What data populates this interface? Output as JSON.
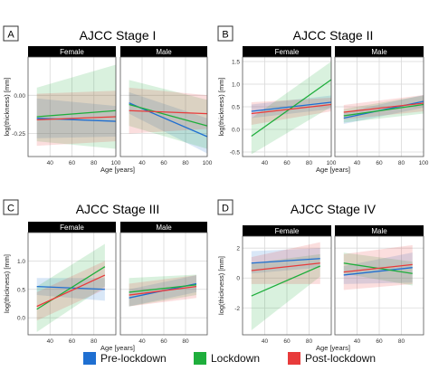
{
  "colors": {
    "pre_lockdown": "#1f6fd1",
    "lockdown": "#1fae3c",
    "post_lockdown": "#e83b3b",
    "strip_bg": "#000000",
    "strip_text": "#ffffff",
    "grid": "#d9d9d9",
    "panel_border": "#555555"
  },
  "legend": {
    "items": [
      {
        "key": "pre_lockdown",
        "label": "Pre-lockdown"
      },
      {
        "key": "lockdown",
        "label": "Lockdown"
      },
      {
        "key": "post_lockdown",
        "label": "Post-lockdown"
      }
    ]
  },
  "chart_data": [
    {
      "letter": "A",
      "title": "AJCC Stage I",
      "type": "line",
      "xlabel": "Age [years]",
      "ylabel": "log(thickness) [mm]",
      "xlim": [
        20,
        100
      ],
      "ylim": [
        -0.4,
        0.25
      ],
      "xticks": [
        40,
        60,
        80,
        100
      ],
      "yticks": [
        -0.25,
        0.0
      ],
      "ytick_labels": [
        "-0.25",
        "0.00"
      ],
      "grid": true,
      "facets": [
        {
          "label": "Female",
          "series": [
            {
              "key": "pre_lockdown",
              "x": [
                28,
                100
              ],
              "y": [
                -0.15,
                -0.17
              ],
              "band_lo": [
                -0.28,
                -0.27
              ],
              "band_hi": [
                -0.02,
                -0.07
              ]
            },
            {
              "key": "lockdown",
              "x": [
                28,
                100
              ],
              "y": [
                -0.14,
                -0.1
              ],
              "band_lo": [
                -0.3,
                -0.35
              ],
              "band_hi": [
                0.05,
                0.2
              ]
            },
            {
              "key": "post_lockdown",
              "x": [
                28,
                100
              ],
              "y": [
                -0.16,
                -0.14
              ],
              "band_lo": [
                -0.33,
                -0.3
              ],
              "band_hi": [
                0.01,
                0.03
              ]
            }
          ]
        },
        {
          "label": "Male",
          "series": [
            {
              "key": "pre_lockdown",
              "x": [
                28,
                100
              ],
              "y": [
                -0.05,
                -0.27
              ],
              "band_lo": [
                -0.12,
                -0.38
              ],
              "band_hi": [
                0.02,
                -0.15
              ]
            },
            {
              "key": "lockdown",
              "x": [
                28,
                100
              ],
              "y": [
                -0.06,
                -0.2
              ],
              "band_lo": [
                -0.2,
                -0.35
              ],
              "band_hi": [
                0.1,
                -0.03
              ]
            },
            {
              "key": "post_lockdown",
              "x": [
                28,
                100
              ],
              "y": [
                -0.1,
                -0.12
              ],
              "band_lo": [
                -0.25,
                -0.22
              ],
              "band_hi": [
                0.05,
                0.0
              ]
            }
          ]
        }
      ]
    },
    {
      "letter": "B",
      "title": "AJCC Stage II",
      "type": "line",
      "xlabel": "Age [years]",
      "ylabel": "log(thickness) [mm]",
      "xlim": [
        20,
        100
      ],
      "ylim": [
        -0.6,
        1.6
      ],
      "xticks": [
        40,
        60,
        80,
        100
      ],
      "yticks": [
        -0.5,
        0.0,
        0.5,
        1.0,
        1.5
      ],
      "ytick_labels": [
        "-0.5",
        "0.0",
        "0.5",
        "1.0",
        "1.5"
      ],
      "grid": true,
      "facets": [
        {
          "label": "Female",
          "series": [
            {
              "key": "pre_lockdown",
              "x": [
                28,
                100
              ],
              "y": [
                0.4,
                0.6
              ],
              "band_lo": [
                0.25,
                0.45
              ],
              "band_hi": [
                0.55,
                0.75
              ]
            },
            {
              "key": "lockdown",
              "x": [
                28,
                100
              ],
              "y": [
                -0.15,
                1.1
              ],
              "band_lo": [
                -0.55,
                0.5
              ],
              "band_hi": [
                0.25,
                1.5
              ]
            },
            {
              "key": "post_lockdown",
              "x": [
                28,
                100
              ],
              "y": [
                0.35,
                0.55
              ],
              "band_lo": [
                0.1,
                0.4
              ],
              "band_hi": [
                0.6,
                0.7
              ]
            }
          ]
        },
        {
          "label": "Male",
          "series": [
            {
              "key": "pre_lockdown",
              "x": [
                28,
                100
              ],
              "y": [
                0.25,
                0.62
              ],
              "band_lo": [
                0.12,
                0.48
              ],
              "band_hi": [
                0.38,
                0.76
              ]
            },
            {
              "key": "lockdown",
              "x": [
                28,
                100
              ],
              "y": [
                0.3,
                0.55
              ],
              "band_lo": [
                0.15,
                0.35
              ],
              "band_hi": [
                0.45,
                0.75
              ]
            },
            {
              "key": "post_lockdown",
              "x": [
                28,
                100
              ],
              "y": [
                0.38,
                0.58
              ],
              "band_lo": [
                0.22,
                0.4
              ],
              "band_hi": [
                0.54,
                0.76
              ]
            }
          ]
        }
      ]
    },
    {
      "letter": "C",
      "title": "AJCC Stage III",
      "type": "line",
      "xlabel": "Age [years]",
      "ylabel": "log(thickness) [mm]",
      "xlim": [
        20,
        100
      ],
      "ylim": [
        -0.3,
        1.5
      ],
      "xticks": [
        40,
        60,
        80
      ],
      "yticks": [
        0.0,
        0.5,
        1.0
      ],
      "ytick_labels": [
        "0.0",
        "0.5",
        "1.0"
      ],
      "grid": true,
      "facets": [
        {
          "label": "Female",
          "series": [
            {
              "key": "pre_lockdown",
              "x": [
                28,
                90
              ],
              "y": [
                0.55,
                0.5
              ],
              "band_lo": [
                0.4,
                0.3
              ],
              "band_hi": [
                0.7,
                0.7
              ]
            },
            {
              "key": "lockdown",
              "x": [
                28,
                90
              ],
              "y": [
                0.15,
                0.9
              ],
              "band_lo": [
                -0.25,
                0.55
              ],
              "band_hi": [
                0.55,
                1.3
              ]
            },
            {
              "key": "post_lockdown",
              "x": [
                28,
                90
              ],
              "y": [
                0.2,
                0.75
              ],
              "band_lo": [
                -0.05,
                0.5
              ],
              "band_hi": [
                0.45,
                1.0
              ]
            }
          ]
        },
        {
          "label": "Male",
          "series": [
            {
              "key": "pre_lockdown",
              "x": [
                28,
                90
              ],
              "y": [
                0.35,
                0.6
              ],
              "band_lo": [
                0.2,
                0.45
              ],
              "band_hi": [
                0.5,
                0.75
              ]
            },
            {
              "key": "lockdown",
              "x": [
                28,
                90
              ],
              "y": [
                0.45,
                0.58
              ],
              "band_lo": [
                0.2,
                0.4
              ],
              "band_hi": [
                0.7,
                0.76
              ]
            },
            {
              "key": "post_lockdown",
              "x": [
                28,
                90
              ],
              "y": [
                0.4,
                0.55
              ],
              "band_lo": [
                0.2,
                0.35
              ],
              "band_hi": [
                0.6,
                0.75
              ]
            }
          ]
        }
      ]
    },
    {
      "letter": "D",
      "title": "AJCC Stage IV",
      "type": "line",
      "xlabel": "Age [years]",
      "ylabel": "log(thickness) [mm]",
      "xlim": [
        20,
        100
      ],
      "ylim": [
        -3.8,
        2.8
      ],
      "xticks": [
        40,
        60,
        80
      ],
      "yticks": [
        -2,
        0,
        2
      ],
      "ytick_labels": [
        "-2",
        "0",
        "2"
      ],
      "grid": true,
      "facets": [
        {
          "label": "Female",
          "series": [
            {
              "key": "pre_lockdown",
              "x": [
                28,
                90
              ],
              "y": [
                1.0,
                1.3
              ],
              "band_lo": [
                0.3,
                0.7
              ],
              "band_hi": [
                1.8,
                2.0
              ]
            },
            {
              "key": "lockdown",
              "x": [
                28,
                90
              ],
              "y": [
                -1.2,
                0.8
              ],
              "band_lo": [
                -3.5,
                0.1
              ],
              "band_hi": [
                1.0,
                1.6
              ]
            },
            {
              "key": "post_lockdown",
              "x": [
                28,
                90
              ],
              "y": [
                0.5,
                1.0
              ],
              "band_lo": [
                -0.4,
                -0.4
              ],
              "band_hi": [
                1.4,
                2.4
              ]
            }
          ]
        },
        {
          "label": "Male",
          "series": [
            {
              "key": "pre_lockdown",
              "x": [
                28,
                90
              ],
              "y": [
                0.2,
                0.7
              ],
              "band_lo": [
                -0.4,
                -0.3
              ],
              "band_hi": [
                0.8,
                1.7
              ]
            },
            {
              "key": "lockdown",
              "x": [
                28,
                90
              ],
              "y": [
                1.0,
                0.3
              ],
              "band_lo": [
                0.3,
                -0.5
              ],
              "band_hi": [
                1.7,
                1.1
              ]
            },
            {
              "key": "post_lockdown",
              "x": [
                28,
                90
              ],
              "y": [
                0.4,
                0.9
              ],
              "band_lo": [
                -0.8,
                -0.4
              ],
              "band_hi": [
                1.6,
                2.2
              ]
            }
          ]
        }
      ]
    }
  ]
}
